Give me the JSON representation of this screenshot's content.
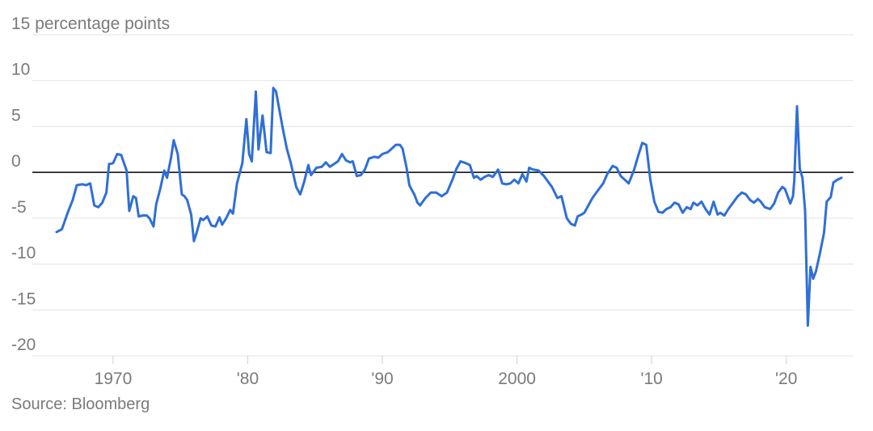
{
  "chart_data": {
    "type": "line",
    "title": "",
    "xlabel": "",
    "ylabel": "",
    "y_unit_label": "percentage points",
    "ylim": [
      -20,
      15
    ],
    "xlim": [
      1964,
      2025
    ],
    "y_ticks": [
      {
        "value": 15,
        "label": "15"
      },
      {
        "value": 10,
        "label": "10"
      },
      {
        "value": 5,
        "label": "5"
      },
      {
        "value": 0,
        "label": "0"
      },
      {
        "value": -5,
        "label": "-5"
      },
      {
        "value": -10,
        "label": "-10"
      },
      {
        "value": -15,
        "label": "-15"
      },
      {
        "value": -20,
        "label": "-20"
      }
    ],
    "x_ticks": [
      {
        "value": 1970,
        "label": "1970"
      },
      {
        "value": 1980,
        "label": "'80"
      },
      {
        "value": 1990,
        "label": "'90"
      },
      {
        "value": 2000,
        "label": "2000"
      },
      {
        "value": 2010,
        "label": "'10"
      },
      {
        "value": 2020,
        "label": "'20"
      }
    ],
    "grid": true,
    "zero_line": true,
    "line_color": "#2f6fd6",
    "series": [
      {
        "points": [
          [
            1965.8,
            -6.5
          ],
          [
            1966.2,
            -6.2
          ],
          [
            1966.6,
            -4.5
          ],
          [
            1967.0,
            -3.0
          ],
          [
            1967.3,
            -1.4
          ],
          [
            1967.7,
            -1.3
          ],
          [
            1968.0,
            -1.4
          ],
          [
            1968.3,
            -1.2
          ],
          [
            1968.6,
            -3.6
          ],
          [
            1968.9,
            -3.8
          ],
          [
            1969.2,
            -3.3
          ],
          [
            1969.5,
            -2.2
          ],
          [
            1969.7,
            0.9
          ],
          [
            1970.0,
            1.0
          ],
          [
            1970.3,
            2.0
          ],
          [
            1970.6,
            1.9
          ],
          [
            1971.0,
            0.2
          ],
          [
            1971.2,
            -4.2
          ],
          [
            1971.5,
            -2.6
          ],
          [
            1971.7,
            -2.8
          ],
          [
            1971.9,
            -4.8
          ],
          [
            1972.2,
            -4.7
          ],
          [
            1972.5,
            -4.7
          ],
          [
            1972.7,
            -5.0
          ],
          [
            1973.0,
            -5.9
          ],
          [
            1973.2,
            -3.5
          ],
          [
            1973.5,
            -1.8
          ],
          [
            1973.8,
            0.2
          ],
          [
            1974.0,
            -0.6
          ],
          [
            1974.3,
            1.6
          ],
          [
            1974.5,
            3.5
          ],
          [
            1974.8,
            2.0
          ],
          [
            1975.1,
            -2.4
          ],
          [
            1975.3,
            -2.6
          ],
          [
            1975.5,
            -3.0
          ],
          [
            1975.8,
            -4.6
          ],
          [
            1976.0,
            -7.5
          ],
          [
            1976.2,
            -6.6
          ],
          [
            1976.5,
            -5.0
          ],
          [
            1976.7,
            -5.2
          ],
          [
            1977.0,
            -4.8
          ],
          [
            1977.3,
            -5.8
          ],
          [
            1977.6,
            -5.9
          ],
          [
            1977.9,
            -4.9
          ],
          [
            1978.1,
            -5.7
          ],
          [
            1978.4,
            -5.0
          ],
          [
            1978.7,
            -4.1
          ],
          [
            1978.9,
            -4.5
          ],
          [
            1979.2,
            -1.2
          ],
          [
            1979.6,
            1.0
          ],
          [
            1979.9,
            5.8
          ],
          [
            1980.1,
            2.0
          ],
          [
            1980.3,
            1.2
          ],
          [
            1980.6,
            8.8
          ],
          [
            1980.8,
            2.5
          ],
          [
            1981.1,
            6.2
          ],
          [
            1981.4,
            2.2
          ],
          [
            1981.7,
            2.1
          ],
          [
            1981.9,
            9.2
          ],
          [
            1982.1,
            8.8
          ],
          [
            1982.6,
            4.8
          ],
          [
            1982.9,
            2.6
          ],
          [
            1983.2,
            1.0
          ],
          [
            1983.6,
            -1.6
          ],
          [
            1983.9,
            -2.4
          ],
          [
            1984.2,
            -1.0
          ],
          [
            1984.5,
            0.8
          ],
          [
            1984.7,
            -0.3
          ],
          [
            1985.1,
            0.5
          ],
          [
            1985.5,
            0.6
          ],
          [
            1985.8,
            1.1
          ],
          [
            1986.1,
            0.6
          ],
          [
            1986.4,
            0.9
          ],
          [
            1986.7,
            1.2
          ],
          [
            1987.0,
            2.0
          ],
          [
            1987.3,
            1.3
          ],
          [
            1987.6,
            1.1
          ],
          [
            1987.8,
            1.2
          ],
          [
            1988.1,
            -0.4
          ],
          [
            1988.4,
            -0.3
          ],
          [
            1988.7,
            0.3
          ],
          [
            1989.0,
            1.5
          ],
          [
            1989.4,
            1.7
          ],
          [
            1989.7,
            1.6
          ],
          [
            1990.0,
            2.0
          ],
          [
            1990.4,
            2.2
          ],
          [
            1990.7,
            2.6
          ],
          [
            1991.0,
            3.0
          ],
          [
            1991.3,
            3.0
          ],
          [
            1991.5,
            2.6
          ],
          [
            1991.8,
            0.5
          ],
          [
            1992.0,
            -1.4
          ],
          [
            1992.4,
            -2.5
          ],
          [
            1992.6,
            -3.3
          ],
          [
            1992.8,
            -3.6
          ],
          [
            1993.2,
            -2.8
          ],
          [
            1993.6,
            -2.2
          ],
          [
            1994.0,
            -2.2
          ],
          [
            1994.4,
            -2.6
          ],
          [
            1994.8,
            -2.2
          ],
          [
            1995.2,
            -0.8
          ],
          [
            1995.5,
            0.4
          ],
          [
            1995.8,
            1.2
          ],
          [
            1996.2,
            1.0
          ],
          [
            1996.5,
            0.8
          ],
          [
            1996.8,
            -0.6
          ],
          [
            1997.0,
            -0.4
          ],
          [
            1997.3,
            -0.8
          ],
          [
            1997.6,
            -0.5
          ],
          [
            1997.9,
            -0.3
          ],
          [
            1998.2,
            -0.5
          ],
          [
            1998.6,
            0.3
          ],
          [
            1998.9,
            -1.2
          ],
          [
            1999.2,
            -1.3
          ],
          [
            1999.5,
            -1.2
          ],
          [
            1999.8,
            -0.8
          ],
          [
            2000.1,
            -1.2
          ],
          [
            2000.4,
            -0.2
          ],
          [
            2000.7,
            -1.0
          ],
          [
            2000.9,
            0.5
          ],
          [
            2001.2,
            0.3
          ],
          [
            2001.6,
            0.2
          ],
          [
            2002.0,
            -0.4
          ],
          [
            2002.3,
            -1.0
          ],
          [
            2002.6,
            -1.6
          ],
          [
            2003.0,
            -2.8
          ],
          [
            2003.3,
            -2.6
          ],
          [
            2003.7,
            -5.0
          ],
          [
            2004.0,
            -5.6
          ],
          [
            2004.3,
            -5.8
          ],
          [
            2004.5,
            -4.8
          ],
          [
            2004.8,
            -4.6
          ],
          [
            2005.0,
            -4.4
          ],
          [
            2005.3,
            -3.6
          ],
          [
            2005.6,
            -2.8
          ],
          [
            2006.0,
            -2.0
          ],
          [
            2006.4,
            -1.2
          ],
          [
            2006.7,
            -0.2
          ],
          [
            2007.1,
            0.7
          ],
          [
            2007.4,
            0.5
          ],
          [
            2007.7,
            -0.4
          ],
          [
            2008.0,
            -0.8
          ],
          [
            2008.3,
            -1.2
          ],
          [
            2008.7,
            0.3
          ],
          [
            2009.0,
            1.8
          ],
          [
            2009.3,
            3.2
          ],
          [
            2009.6,
            3.0
          ],
          [
            2009.9,
            -0.8
          ],
          [
            2010.2,
            -3.2
          ],
          [
            2010.5,
            -4.3
          ],
          [
            2010.8,
            -4.4
          ],
          [
            2011.1,
            -4.0
          ],
          [
            2011.4,
            -3.8
          ],
          [
            2011.7,
            -3.3
          ],
          [
            2012.0,
            -3.5
          ],
          [
            2012.3,
            -4.4
          ],
          [
            2012.6,
            -3.8
          ],
          [
            2012.9,
            -4.0
          ],
          [
            2013.1,
            -3.3
          ],
          [
            2013.4,
            -3.6
          ],
          [
            2013.7,
            -3.2
          ],
          [
            2014.0,
            -4.0
          ],
          [
            2014.3,
            -4.6
          ],
          [
            2014.6,
            -3.2
          ],
          [
            2014.9,
            -4.6
          ],
          [
            2015.1,
            -4.4
          ],
          [
            2015.4,
            -4.7
          ],
          [
            2015.7,
            -4.0
          ],
          [
            2016.0,
            -3.4
          ],
          [
            2016.4,
            -2.6
          ],
          [
            2016.7,
            -2.2
          ],
          [
            2017.0,
            -2.4
          ],
          [
            2017.3,
            -3.0
          ],
          [
            2017.6,
            -3.3
          ],
          [
            2017.9,
            -2.9
          ],
          [
            2018.1,
            -3.2
          ],
          [
            2018.4,
            -3.8
          ],
          [
            2018.8,
            -4.0
          ],
          [
            2019.1,
            -3.4
          ],
          [
            2019.4,
            -2.2
          ],
          [
            2019.7,
            -1.6
          ],
          [
            2019.9,
            -1.8
          ],
          [
            2020.1,
            -2.6
          ],
          [
            2020.3,
            -3.4
          ],
          [
            2020.5,
            -2.6
          ],
          [
            2020.6,
            -0.8
          ],
          [
            2020.8,
            7.2
          ],
          [
            2021.0,
            0.4
          ],
          [
            2021.2,
            -0.6
          ],
          [
            2021.4,
            -4.2
          ],
          [
            2021.6,
            -16.7
          ],
          [
            2021.8,
            -10.3
          ],
          [
            2022.0,
            -11.6
          ],
          [
            2022.2,
            -10.8
          ],
          [
            2022.5,
            -8.8
          ],
          [
            2022.8,
            -6.6
          ],
          [
            2023.0,
            -3.2
          ],
          [
            2023.3,
            -2.7
          ],
          [
            2023.5,
            -1.1
          ],
          [
            2023.8,
            -0.8
          ],
          [
            2024.1,
            -0.6
          ]
        ]
      }
    ]
  },
  "source": "Source: Bloomberg"
}
